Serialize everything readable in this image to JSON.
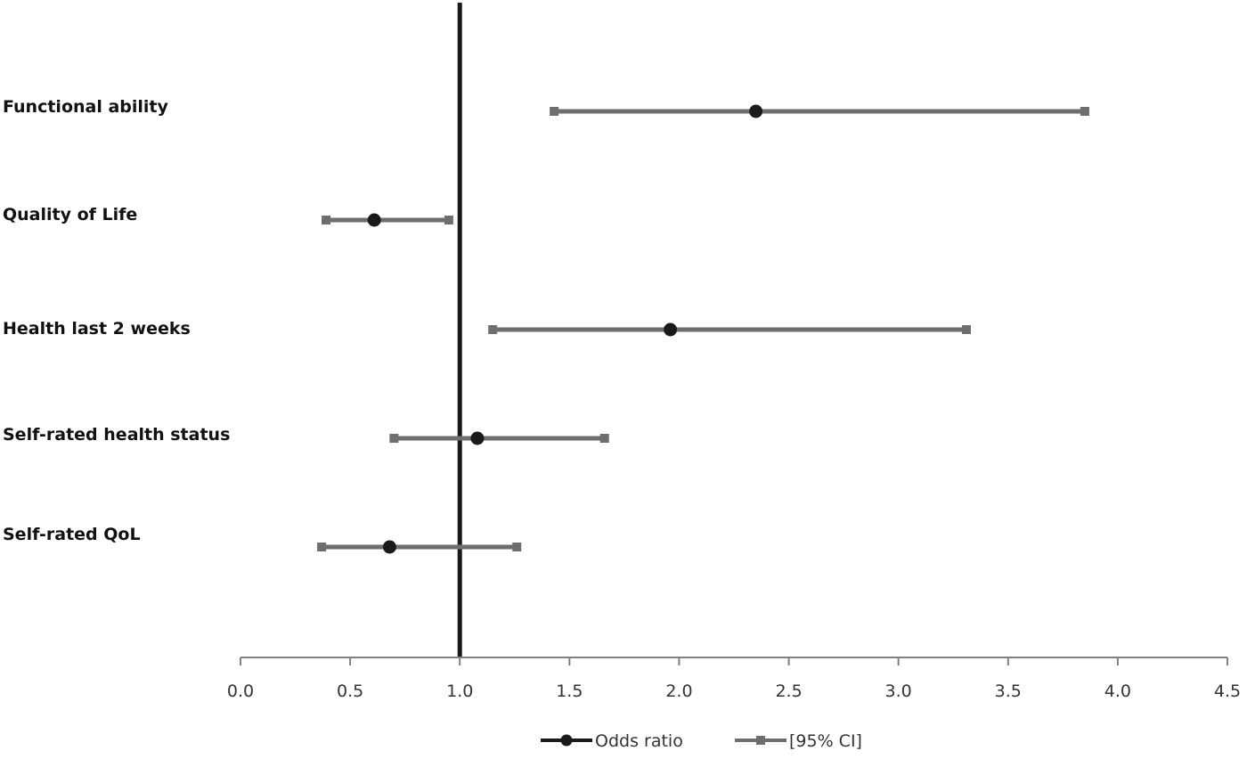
{
  "chart_data": {
    "type": "scatter",
    "subtype": "forest-plot",
    "title": "",
    "xlabel": "",
    "ylabel": "",
    "xlim": [
      0.0,
      4.5
    ],
    "xticks": [
      0.0,
      0.5,
      1.0,
      1.5,
      2.0,
      2.5,
      3.0,
      3.5,
      4.0,
      4.5
    ],
    "xtick_labels": [
      "0.0",
      "0.5",
      "1.0",
      "1.5",
      "2.0",
      "2.5",
      "3.0",
      "3.5",
      "4.0",
      "4.5"
    ],
    "reference_line": 1.0,
    "grid": false,
    "legend_position": "bottom",
    "categories": [
      "Functional ability",
      "Quality of Life",
      "Health last 2 weeks",
      "Self-rated health status",
      "Self-rated QoL"
    ],
    "series": [
      {
        "name": "Odds ratio",
        "marker": "circle",
        "color": "#1a1a1a",
        "values": [
          2.35,
          0.61,
          1.96,
          1.08,
          0.68
        ]
      },
      {
        "name": "[95% CI]",
        "marker": "square",
        "color": "#6e6e6e",
        "lower": [
          1.43,
          0.39,
          1.15,
          0.7,
          0.37
        ],
        "upper": [
          3.85,
          0.95,
          3.31,
          1.66,
          1.26
        ]
      }
    ]
  },
  "legend": {
    "odds_ratio_label": "Odds ratio",
    "ci_label": "[95% CI]"
  },
  "colors": {
    "odds_ratio": "#1a1a1a",
    "ci": "#6e6e6e",
    "axis": "#808080",
    "reference_line": "#1a1a1a"
  }
}
